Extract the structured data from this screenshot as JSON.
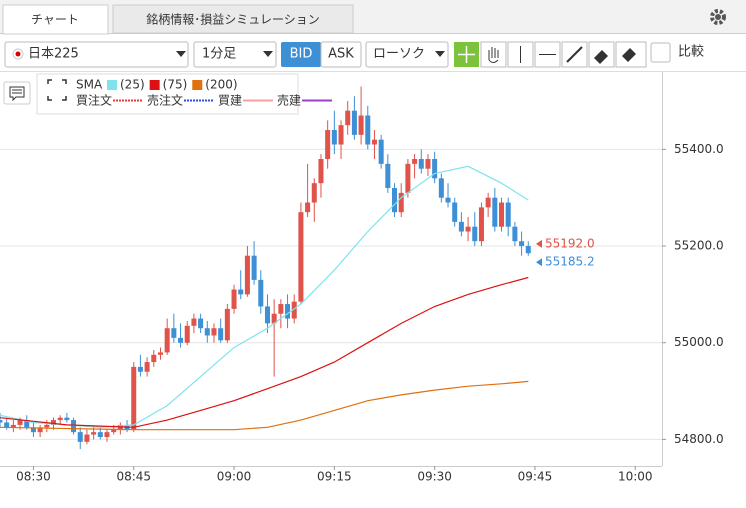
{
  "ui": {
    "tabs": [
      "チャート",
      "銘柄情報･損益シミュレーション"
    ],
    "symbol": "日本225",
    "timeframe": "1分足",
    "bid": "BID",
    "ask": "ASK",
    "chart_style": "ローソク",
    "compare": "比較"
  },
  "chart_data": {
    "type": "candlestick",
    "up_color": "#e0534a",
    "down_color": "#3d8fd6",
    "x": [
      "08:25",
      "08:26",
      "08:27",
      "08:28",
      "08:29",
      "08:30",
      "08:31",
      "08:32",
      "08:33",
      "08:34",
      "08:35",
      "08:36",
      "08:37",
      "08:38",
      "08:39",
      "08:40",
      "08:41",
      "08:42",
      "08:43",
      "08:44",
      "08:45",
      "08:46",
      "08:47",
      "08:48",
      "08:49",
      "08:50",
      "08:51",
      "08:52",
      "08:53",
      "08:54",
      "08:55",
      "08:56",
      "08:57",
      "08:58",
      "08:59",
      "09:00",
      "09:01",
      "09:02",
      "09:03",
      "09:04",
      "09:05",
      "09:06",
      "09:07",
      "09:08",
      "09:09",
      "09:10",
      "09:11",
      "09:12",
      "09:13",
      "09:14",
      "09:15",
      "09:16",
      "09:17",
      "09:18",
      "09:19",
      "09:20",
      "09:21",
      "09:22",
      "09:23",
      "09:24",
      "09:25",
      "09:26",
      "09:27",
      "09:28",
      "09:29",
      "09:30",
      "09:31",
      "09:32",
      "09:33",
      "09:34",
      "09:35",
      "09:36",
      "09:37",
      "09:38",
      "09:39",
      "09:40",
      "09:41",
      "09:42",
      "09:43",
      "09:44"
    ],
    "open": [
      54840,
      54835,
      54825,
      54830,
      54840,
      54825,
      54815,
      54825,
      54830,
      54840,
      54845,
      54840,
      54815,
      54795,
      54810,
      54815,
      54805,
      54815,
      54820,
      54830,
      54820,
      54950,
      54940,
      54960,
      54975,
      54980,
      55030,
      55010,
      55000,
      55035,
      55050,
      55030,
      55015,
      55030,
      55005,
      55070,
      55110,
      55100,
      55180,
      55130,
      55075,
      55040,
      55060,
      55080,
      55050,
      55085,
      55270,
      55290,
      55330,
      55380,
      55440,
      55410,
      55450,
      55480,
      55430,
      55470,
      55410,
      55420,
      55370,
      55320,
      55270,
      55310,
      55370,
      55380,
      55360,
      55380,
      55340,
      55300,
      55290,
      55250,
      55230,
      55240,
      55210,
      55280,
      55300,
      55240,
      55290,
      55240,
      55210,
      55200
    ],
    "high": [
      54855,
      54845,
      54840,
      54845,
      54850,
      54835,
      54830,
      54840,
      54845,
      54850,
      54855,
      54845,
      54825,
      54820,
      54825,
      54825,
      54820,
      54830,
      54835,
      54840,
      54960,
      54975,
      54970,
      54985,
      54990,
      55050,
      55060,
      55040,
      55045,
      55060,
      55060,
      55045,
      55040,
      55050,
      55080,
      55120,
      55150,
      55200,
      55210,
      55150,
      55100,
      55090,
      55090,
      55100,
      55100,
      55290,
      55370,
      55340,
      55390,
      55460,
      55480,
      55460,
      55500,
      55510,
      55530,
      55490,
      55440,
      55430,
      55390,
      55330,
      55330,
      55380,
      55390,
      55400,
      55390,
      55395,
      55350,
      55330,
      55300,
      55270,
      55260,
      55270,
      55290,
      55310,
      55320,
      55300,
      55300,
      55250,
      55230,
      55210
    ],
    "low": [
      54825,
      54820,
      54815,
      54820,
      54820,
      54805,
      54805,
      54815,
      54820,
      54830,
      54835,
      54810,
      54780,
      54790,
      54800,
      54800,
      54795,
      54810,
      54810,
      54815,
      54815,
      54930,
      54930,
      54950,
      54965,
      54975,
      55000,
      54990,
      54995,
      55020,
      55020,
      55000,
      55000,
      55000,
      55000,
      55060,
      55090,
      55095,
      55120,
      55060,
      55020,
      54930,
      55030,
      55030,
      55040,
      55080,
      55260,
      55250,
      55300,
      55360,
      55390,
      55380,
      55430,
      55420,
      55410,
      55400,
      55380,
      55360,
      55310,
      55260,
      55260,
      55300,
      55340,
      55350,
      55345,
      55330,
      55290,
      55280,
      55240,
      55220,
      55210,
      55200,
      55200,
      55260,
      55230,
      55230,
      55220,
      55200,
      55180,
      55180
    ],
    "close": [
      54835,
      54825,
      54830,
      54840,
      54825,
      54815,
      54825,
      54830,
      54840,
      54845,
      54840,
      54815,
      54795,
      54810,
      54815,
      54805,
      54815,
      54820,
      54830,
      54820,
      54950,
      54940,
      54960,
      54975,
      54980,
      55030,
      55010,
      55000,
      55035,
      55050,
      55030,
      55015,
      55030,
      55005,
      55070,
      55110,
      55100,
      55180,
      55130,
      55075,
      55040,
      55060,
      55080,
      55050,
      55085,
      55270,
      55290,
      55330,
      55380,
      55440,
      55410,
      55450,
      55480,
      55430,
      55470,
      55410,
      55420,
      55370,
      55320,
      55270,
      55310,
      55370,
      55380,
      55360,
      55380,
      55340,
      55300,
      55290,
      55250,
      55230,
      55240,
      55210,
      55280,
      55300,
      55240,
      55290,
      55240,
      55210,
      55200,
      55185.2
    ],
    "sma_label": "SMA",
    "sma": [
      {
        "name": "(25)",
        "color": "#7fe3ee",
        "x": [
          "08:25",
          "08:30",
          "08:35",
          "08:40",
          "08:45",
          "08:50",
          "08:55",
          "09:00",
          "09:05",
          "09:10",
          "09:15",
          "09:20",
          "09:25",
          "09:30",
          "09:35",
          "09:40",
          "09:44"
        ],
        "values": [
          54850,
          54835,
          54830,
          54825,
          54830,
          54870,
          54930,
          54990,
          55030,
          55080,
          55150,
          55230,
          55300,
          55350,
          55365,
          55330,
          55295
        ]
      },
      {
        "name": "(75)",
        "color": "#dd1111",
        "x": [
          "08:25",
          "08:35",
          "08:45",
          "08:50",
          "08:55",
          "09:00",
          "09:05",
          "09:10",
          "09:15",
          "09:20",
          "09:25",
          "09:30",
          "09:35",
          "09:40",
          "09:44"
        ],
        "values": [
          54845,
          54830,
          54825,
          54840,
          54860,
          54880,
          54905,
          54930,
          54960,
          55000,
          55040,
          55075,
          55100,
          55120,
          55135
        ]
      },
      {
        "name": "(200)",
        "color": "#e07010",
        "x": [
          "08:25",
          "08:45",
          "09:00",
          "09:05",
          "09:10",
          "09:15",
          "09:20",
          "09:25",
          "09:30",
          "09:35",
          "09:40",
          "09:44"
        ],
        "values": [
          54825,
          54820,
          54820,
          54825,
          54840,
          54860,
          54880,
          54892,
          54902,
          54910,
          54915,
          54920
        ]
      }
    ],
    "order_lines": [
      {
        "name": "買注文",
        "color": "#e53935",
        "style": "dotted"
      },
      {
        "name": "売注文",
        "color": "#2b4fd6",
        "style": "dotted"
      },
      {
        "name": "買建",
        "color": "#f4a0a0",
        "style": "solid"
      },
      {
        "name": "売建",
        "color": "#9b40c8",
        "style": "solid"
      }
    ],
    "price_labels": [
      {
        "value": 55192,
        "label": "55192.0",
        "color": "#e0534a"
      },
      {
        "value": 55185.2,
        "label": "55185.2",
        "color": "#3d8fd6"
      }
    ],
    "xlim": [
      "08:25",
      "10:04"
    ],
    "xticks": [
      "08:30",
      "08:45",
      "09:00",
      "09:15",
      "09:30",
      "09:45",
      "10:00"
    ],
    "ylim": [
      54745,
      55560
    ],
    "yticks": [
      {
        "value": 54800,
        "label": "54800.0"
      },
      {
        "value": 55000,
        "label": "55000.0"
      },
      {
        "value": 55200,
        "label": "55200.0"
      },
      {
        "value": 55400,
        "label": "55400.0"
      }
    ],
    "grid": true
  }
}
